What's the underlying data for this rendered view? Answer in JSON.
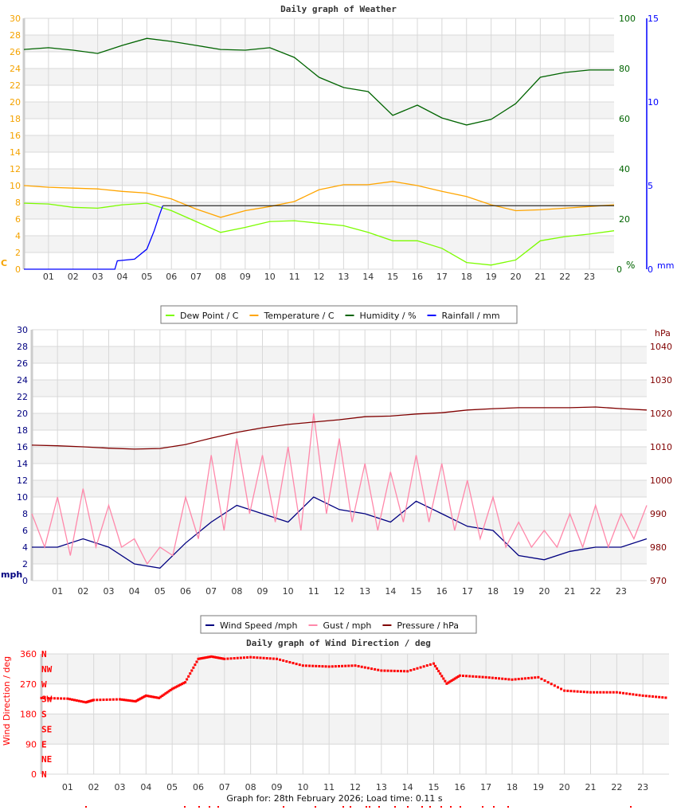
{
  "footer": "Graph for: 28th February 2026; Load time: 0.11 s",
  "chart_data": [
    {
      "type": "line",
      "title": "Daily graph of Weather",
      "x_ticks": [
        "01",
        "02",
        "03",
        "04",
        "05",
        "06",
        "07",
        "08",
        "09",
        "10",
        "11",
        "12",
        "13",
        "14",
        "15",
        "16",
        "17",
        "18",
        "19",
        "20",
        "21",
        "22",
        "23"
      ],
      "xlim": [
        0,
        24
      ],
      "grid": true,
      "legend_position": "bottom",
      "axes": {
        "left": {
          "unit": "C",
          "ylim": [
            0,
            30
          ],
          "ticks": [
            "0",
            "2",
            "4",
            "6",
            "8",
            "10",
            "12",
            "14",
            "16",
            "18",
            "20",
            "22",
            "24",
            "26",
            "28",
            "30"
          ],
          "color": "#f5a300"
        },
        "right": {
          "unit": "%",
          "ylim": [
            0,
            100
          ],
          "ticks": [
            "0",
            "20",
            "40",
            "60",
            "80",
            "100"
          ],
          "color": "#006400"
        },
        "right2": {
          "unit": "mm",
          "ylim": [
            0,
            15
          ],
          "ticks": [
            "0",
            "5",
            "10",
            "15"
          ],
          "color": "#0000ff"
        }
      },
      "series": [
        {
          "name": "Dew Point / C",
          "axis": "left",
          "color": "#7cfc00",
          "x": [
            0,
            1,
            2,
            3,
            4,
            5,
            6,
            7,
            8,
            9,
            10,
            11,
            12,
            13,
            14,
            15,
            16,
            17,
            18,
            19,
            20,
            21,
            22,
            23,
            24
          ],
          "y": [
            7.9,
            7.8,
            7.4,
            7.3,
            7.7,
            7.9,
            7.0,
            5.7,
            4.4,
            5.0,
            5.7,
            5.8,
            5.5,
            5.2,
            4.4,
            3.4,
            3.4,
            2.5,
            0.8,
            0.5,
            1.1,
            3.4,
            3.9,
            4.2,
            4.6
          ]
        },
        {
          "name": "Temperature / C",
          "axis": "left",
          "color": "#ffa500",
          "x": [
            0,
            1,
            2,
            3,
            4,
            5,
            6,
            7,
            8,
            9,
            10,
            11,
            12,
            13,
            14,
            15,
            16,
            17,
            18,
            19,
            20,
            21,
            22,
            23,
            24
          ],
          "y": [
            10.0,
            9.8,
            9.7,
            9.6,
            9.3,
            9.1,
            8.4,
            7.2,
            6.2,
            7.0,
            7.5,
            8.1,
            9.5,
            10.1,
            10.1,
            10.5,
            10.0,
            9.3,
            8.7,
            7.7,
            7.0,
            7.1,
            7.3,
            7.5,
            7.7
          ]
        },
        {
          "name": "Humidity / %",
          "axis": "right",
          "color": "#006400",
          "x": [
            0,
            1,
            2,
            3,
            4,
            5,
            6,
            7,
            8,
            9,
            10,
            11,
            12,
            13,
            14,
            15,
            16,
            17,
            18,
            19,
            20,
            21,
            22,
            23,
            24
          ],
          "y": [
            87.6,
            88.3,
            87.3,
            86.0,
            89.2,
            92.0,
            90.8,
            89.2,
            87.6,
            87.3,
            88.3,
            84.4,
            76.5,
            72.4,
            70.8,
            61.3,
            65.4,
            60.3,
            57.5,
            59.7,
            66.0,
            76.5,
            78.4,
            79.4,
            79.4
          ]
        },
        {
          "name": "Rainfall / mm",
          "axis": "right2",
          "color": "#0000ff",
          "x": [
            0,
            3.7,
            3.8,
            4.5,
            5.0,
            5.3,
            5.5,
            5.65
          ],
          "y": [
            0,
            0,
            0.5,
            0.6,
            1.2,
            2.3,
            3.2,
            3.8
          ]
        }
      ],
      "reference_line": {
        "value": 3.8,
        "axis": "right2",
        "color": "#000000",
        "from_x": 5.65,
        "to_x": 24
      }
    },
    {
      "type": "line",
      "title": "",
      "x_ticks": [
        "01",
        "02",
        "03",
        "04",
        "05",
        "06",
        "07",
        "08",
        "09",
        "10",
        "11",
        "12",
        "13",
        "14",
        "15",
        "16",
        "17",
        "18",
        "19",
        "20",
        "21",
        "22",
        "23"
      ],
      "xlim": [
        0,
        24
      ],
      "grid": true,
      "legend_position": "bottom",
      "axes": {
        "left": {
          "unit": "mph",
          "ylim": [
            0,
            30
          ],
          "ticks": [
            "0",
            "2",
            "4",
            "6",
            "8",
            "10",
            "12",
            "14",
            "16",
            "18",
            "20",
            "22",
            "24",
            "26",
            "28",
            "30"
          ],
          "color": "#000080"
        },
        "right": {
          "unit": "hPa",
          "ylim": [
            970,
            1045
          ],
          "ticks": [
            "970",
            "980",
            "990",
            "1000",
            "1010",
            "1020",
            "1030",
            "1040"
          ],
          "color": "#800000"
        }
      },
      "series": [
        {
          "name": "Wind Speed /mph",
          "axis": "left",
          "color": "#000080",
          "x": [
            0,
            1,
            2,
            3,
            4,
            5,
            6,
            7,
            8,
            9,
            10,
            11,
            12,
            13,
            14,
            15,
            16,
            17,
            18,
            19,
            20,
            21,
            22,
            23,
            24
          ],
          "y": [
            4,
            4,
            5,
            4,
            2,
            1.5,
            4.5,
            7,
            9,
            8,
            7,
            10,
            8.5,
            8,
            7,
            9.5,
            8,
            6.5,
            6,
            3,
            2.5,
            3.5,
            4,
            4,
            5
          ]
        },
        {
          "name": "Gust / mph",
          "axis": "left",
          "color": "#ff88aa",
          "x": [
            0,
            0.5,
            1,
            1.5,
            2,
            2.5,
            3,
            3.5,
            4,
            4.5,
            5,
            5.5,
            6,
            6.5,
            7,
            7.5,
            8,
            8.5,
            9,
            9.5,
            10,
            10.5,
            11,
            11.5,
            12,
            12.5,
            13,
            13.5,
            14,
            14.5,
            15,
            15.5,
            16,
            16.5,
            17,
            17.5,
            18,
            18.5,
            19,
            19.5,
            20,
            20.5,
            21,
            21.5,
            22,
            22.5,
            23,
            23.5,
            24
          ],
          "y": [
            8,
            4,
            10,
            3,
            11,
            4,
            9,
            4,
            5,
            2,
            4,
            3,
            10,
            5,
            15,
            6,
            17,
            8,
            15,
            7,
            16,
            6,
            20,
            8,
            17,
            7,
            14,
            6,
            13,
            7,
            15,
            7,
            14,
            6,
            12,
            5,
            10,
            4,
            7,
            4,
            6,
            4,
            8,
            4,
            9,
            4,
            8,
            5,
            9
          ]
        },
        {
          "name": "Pressure / hPa",
          "axis": "right",
          "color": "#800000",
          "x": [
            0,
            1,
            2,
            3,
            4,
            5,
            6,
            7,
            8,
            9,
            10,
            11,
            12,
            13,
            14,
            15,
            16,
            17,
            18,
            19,
            20,
            21,
            22,
            23,
            24
          ],
          "y": [
            1010.5,
            1010.3,
            1010.0,
            1009.6,
            1009.3,
            1009.5,
            1010.7,
            1012.6,
            1014.3,
            1015.7,
            1016.7,
            1017.4,
            1018.1,
            1019.0,
            1019.2,
            1019.8,
            1020.2,
            1021.0,
            1021.4,
            1021.7,
            1021.7,
            1021.7,
            1021.9,
            1021.4,
            1021.0
          ]
        }
      ]
    },
    {
      "type": "scatter",
      "title": "Daily graph of Wind Direction / deg",
      "x_ticks": [
        "01",
        "02",
        "03",
        "04",
        "05",
        "06",
        "07",
        "08",
        "09",
        "10",
        "11",
        "12",
        "13",
        "14",
        "15",
        "16",
        "17",
        "18",
        "19",
        "20",
        "21",
        "22",
        "23"
      ],
      "xlim": [
        0,
        24
      ],
      "grid": true,
      "axes": {
        "left": {
          "label": "Wind Direction / deg",
          "ylim": [
            0,
            360
          ],
          "ticks": [
            "0",
            "90",
            "180",
            "270",
            "360"
          ],
          "color": "#ff0000"
        },
        "compass": [
          "N",
          "NE",
          "E",
          "SE",
          "S",
          "SW",
          "W",
          "NW",
          "N"
        ]
      },
      "series": [
        {
          "name": "Wind Direction / deg",
          "color": "#ff0000",
          "x": [
            0,
            1,
            1.7,
            2,
            3,
            3.6,
            4,
            4.5,
            5,
            5.5,
            6,
            6.5,
            7,
            8,
            9,
            10,
            11,
            12,
            13,
            14,
            15,
            15.5,
            16,
            17,
            18,
            19,
            20,
            21,
            22,
            23,
            24
          ],
          "y": [
            228,
            226,
            215,
            222,
            224,
            218,
            235,
            228,
            255,
            275,
            345,
            352,
            345,
            350,
            345,
            325,
            322,
            325,
            310,
            308,
            331,
            271,
            295,
            290,
            283,
            290,
            250,
            245,
            245,
            235,
            228
          ]
        }
      ]
    }
  ]
}
